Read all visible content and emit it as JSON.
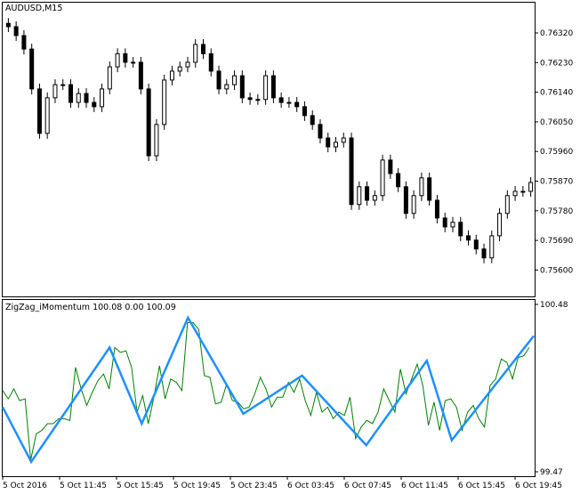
{
  "main_title": "AUDUSD,M15",
  "indicator_title": "ZigZag_iMomentum 100.08 0.00 100.09",
  "colors": {
    "background": "#ffffff",
    "axis": "#000000",
    "candle": "#000000",
    "momentum": "#008000",
    "zigzag": "#1e90ff"
  },
  "chart_data": [
    {
      "type": "candlestick",
      "title": "AUDUSD,M15",
      "y_ticks": [
        "0.76320",
        "0.76230",
        "0.76140",
        "0.76050",
        "0.75960",
        "0.75870",
        "0.75780",
        "0.75690",
        "0.75600"
      ],
      "ylim": [
        0.7556,
        0.764
      ],
      "closes": [
        0.76339,
        0.76312,
        0.76271,
        0.7615,
        0.76015,
        0.76123,
        0.76163,
        0.76163,
        0.76109,
        0.76136,
        0.76109,
        0.76096,
        0.7615,
        0.76217,
        0.76257,
        0.76231,
        0.76231,
        0.7615,
        0.75947,
        0.76042,
        0.76177,
        0.76204,
        0.76217,
        0.76231,
        0.76285,
        0.76257,
        0.76204,
        0.7615,
        0.76163,
        0.7619,
        0.76123,
        0.76118,
        0.76118,
        0.7619,
        0.76123,
        0.76109,
        0.76109,
        0.76096,
        0.76069,
        0.76042,
        0.76001,
        0.75974,
        0.75988,
        0.76001,
        0.75799,
        0.75853,
        0.75812,
        0.75826,
        0.75934,
        0.75893,
        0.75853,
        0.75772,
        0.75826,
        0.7588,
        0.75812,
        0.75758,
        0.75731,
        0.75745,
        0.75704,
        0.75691,
        0.75664,
        0.75637,
        0.75704,
        0.75772,
        0.75826,
        0.75839,
        0.75839,
        0.75866
      ]
    },
    {
      "type": "line",
      "title": "ZigZag_iMomentum",
      "legend_values": [
        "100.08",
        "0.00",
        "100.09"
      ],
      "y_ticks": [
        "100.48",
        "99.47"
      ],
      "ylim": [
        99.47,
        100.48
      ],
      "x_ticks": [
        "5 Oct 2016",
        "5 Oct 11:45",
        "5 Oct 15:45",
        "5 Oct 19:45",
        "5 Oct 23:45",
        "6 Oct 03:45",
        "6 Oct 07:45",
        "6 Oct 11:45",
        "6 Oct 15:45",
        "6 Oct 19:45"
      ],
      "momentum": [
        99.96,
        99.91,
        99.97,
        99.9,
        99.91,
        99.54,
        99.7,
        99.72,
        99.76,
        99.76,
        99.79,
        99.79,
        99.78,
        100.1,
        99.97,
        99.87,
        99.95,
        100.02,
        100.06,
        99.97,
        100.22,
        100.19,
        100.2,
        100.1,
        99.83,
        99.93,
        99.76,
        99.92,
        100.11,
        99.91,
        100.03,
        100.01,
        99.96,
        100.37,
        100.37,
        100.33,
        100.05,
        100.04,
        99.88,
        99.89,
        100.0,
        99.9,
        99.89,
        99.85,
        99.86,
        99.94,
        100.04,
        99.97,
        99.86,
        99.92,
        99.92,
        100.01,
        99.95,
        100.03,
        99.9,
        99.81,
        99.95,
        99.83,
        99.86,
        99.79,
        99.83,
        99.81,
        99.92,
        99.67,
        99.74,
        99.78,
        99.76,
        99.83,
        99.97,
        99.9,
        99.83,
        100.09,
        99.94,
        100.03,
        100.12,
        99.99,
        99.75,
        99.89,
        99.72,
        99.9,
        99.91,
        99.86,
        99.72,
        99.83,
        99.87,
        99.79,
        99.74,
        99.99,
        100.03,
        100.15,
        100.13,
        100.03,
        100.16,
        100.17,
        100.22
      ],
      "zigzag": {
        "bars": [
          0,
          8,
          30,
          39,
          52,
          67.5,
          84,
          102,
          119,
          126,
          149
        ],
        "values": [
          99.86,
          99.53,
          100.22,
          99.76,
          100.4,
          99.82,
          100.05,
          99.63,
          100.14,
          99.66,
          100.29
        ]
      },
      "bar_count": 150
    }
  ]
}
